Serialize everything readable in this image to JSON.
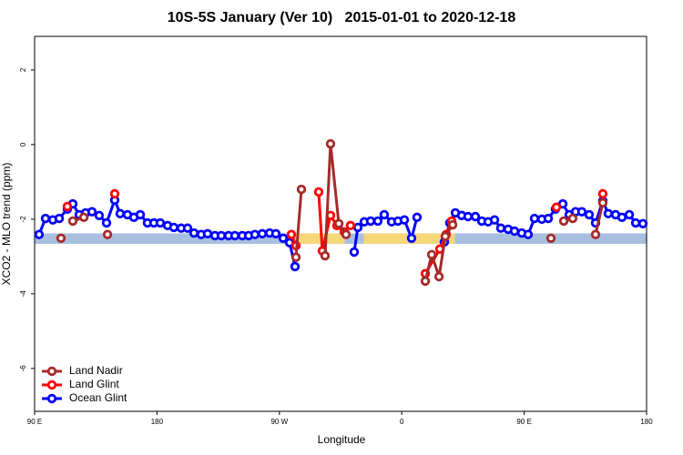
{
  "chart_data": {
    "type": "line",
    "title": "10S-5S January (Ver 10)   2015-01-01 to 2020-12-18",
    "xlabel": "Longitude",
    "ylabel": "XCO2 - MLO trend (ppm)",
    "xlim": [
      90,
      540
    ],
    "ylim": [
      -7.15,
      2.9
    ],
    "xticks": [
      {
        "value": 90,
        "label": "90 E"
      },
      180,
      {
        "value": 270,
        "label": "90 W"
      },
      {
        "value": 360,
        "label": "0"
      },
      {
        "value": 450,
        "label": "90 E"
      },
      {
        "value": 540,
        "label": "180"
      }
    ],
    "yticks": [
      -6,
      -4,
      -2,
      0,
      2
    ],
    "legend": "bottom-left",
    "band": {
      "ylim": [
        -2.66,
        -2.38
      ],
      "color": "#a9bfdf"
    },
    "band_highlights": {
      "color": "#f5d77a",
      "ranges": [
        [
          282,
          318
        ],
        [
          332,
          399
        ]
      ]
    },
    "series": [
      {
        "name": "Land Nadir",
        "color": "#a52a2a",
        "x": [
          109.4,
          null,
          118.1,
          126.2,
          null,
          143.6,
          null,
          282.2,
          286.2,
          null,
          303.6,
          307.6,
          313.7,
          319.0,
          null,
          377.3,
          382.0,
          387.4,
          392.0,
          397.4,
          null,
          469.7,
          null,
          479.1,
          485.7,
          null,
          502.5,
          507.8
        ],
        "values": [
          -2.51,
          null,
          -2.05,
          -1.95,
          null,
          -2.41,
          null,
          -3.02,
          -1.2,
          null,
          -2.98,
          0.02,
          -2.12,
          -2.41,
          null,
          -3.66,
          -2.95,
          -3.54,
          -2.46,
          -2.15,
          null,
          -2.51,
          null,
          -2.05,
          -1.98,
          null,
          -2.41,
          -1.56
        ]
      },
      {
        "name": "Land Glint",
        "color": "#ff0000",
        "x": [
          114.1,
          null,
          148.9,
          null,
          278.8,
          282.2,
          null,
          298.9,
          301.6,
          307.6,
          312.3,
          317.7,
          322.3,
          null,
          377.3,
          388.0,
          392.7,
          396.7,
          null,
          473.7,
          null,
          507.8
        ],
        "values": [
          -1.66,
          null,
          -1.32,
          null,
          -2.41,
          -2.71,
          null,
          -1.27,
          -2.85,
          -1.9,
          -2.17,
          -2.34,
          -2.17,
          null,
          -3.46,
          -2.8,
          -2.41,
          -2.05,
          null,
          -1.68,
          null,
          -1.32
        ]
      },
      {
        "name": "Ocean Glint",
        "color": "#0000ff",
        "x": [
          93.3,
          98.0,
          103.4,
          108.1,
          114.1,
          118.1,
          122.8,
          127.5,
          132.2,
          137.5,
          142.9,
          148.9,
          152.9,
          158.3,
          163.0,
          167.7,
          173.0,
          177.7,
          182.4,
          187.8,
          192.4,
          197.8,
          202.5,
          207.2,
          212.5,
          217.2,
          222.6,
          227.3,
          232.6,
          237.3,
          242.7,
          247.4,
          252.0,
          257.4,
          262.8,
          267.4,
          272.8,
          277.5,
          281.5,
          null,
          325.0,
          327.7,
          332.4,
          337.1,
          342.4,
          347.1,
          352.5,
          357.2,
          361.9,
          367.2,
          371.2,
          null,
          391.3,
          395.3,
          399.4,
          404.0,
          408.7,
          414.1,
          418.8,
          423.5,
          428.2,
          432.8,
          438.2,
          442.9,
          448.2,
          452.9,
          457.6,
          463.0,
          467.7,
          473.0,
          478.4,
          483.1,
          487.8,
          492.4,
          497.8,
          502.5,
          507.8,
          511.8,
          517.2,
          521.9,
          527.3,
          532.0,
          537.3
        ],
        "values": [
          -2.41,
          -1.98,
          -2.02,
          -1.98,
          -1.73,
          -1.59,
          -1.88,
          -1.83,
          -1.8,
          -1.9,
          -2.1,
          -1.49,
          -1.85,
          -1.88,
          -1.95,
          -1.88,
          -2.1,
          -2.1,
          -2.1,
          -2.17,
          -2.22,
          -2.24,
          -2.24,
          -2.37,
          -2.41,
          -2.39,
          -2.44,
          -2.44,
          -2.44,
          -2.44,
          -2.44,
          -2.44,
          -2.41,
          -2.39,
          -2.37,
          -2.39,
          -2.51,
          -2.63,
          -3.27,
          null,
          -2.88,
          -2.22,
          -2.07,
          -2.05,
          -2.05,
          -1.88,
          -2.07,
          -2.05,
          -2.02,
          -2.51,
          -1.95,
          null,
          -2.61,
          -2.1,
          -1.83,
          -1.9,
          -1.93,
          -1.93,
          -2.05,
          -2.07,
          -2.02,
          -2.24,
          -2.27,
          -2.32,
          -2.37,
          -2.41,
          -1.98,
          -2.0,
          -1.98,
          -1.73,
          -1.59,
          -1.88,
          -1.8,
          -1.8,
          -1.88,
          -2.1,
          -1.51,
          -1.85,
          -1.88,
          -1.95,
          -1.88,
          -2.1,
          -2.12
        ]
      }
    ]
  }
}
